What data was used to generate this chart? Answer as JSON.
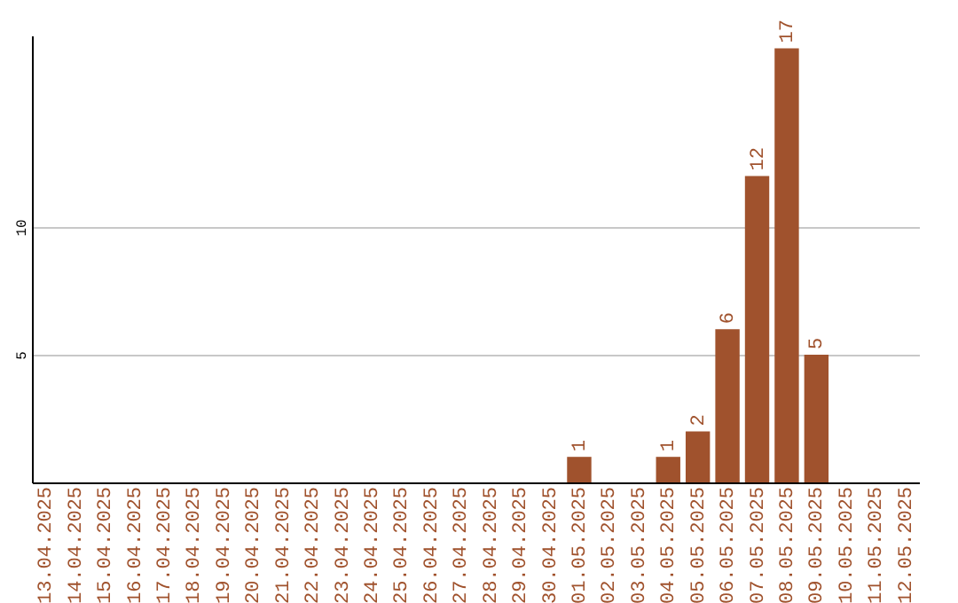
{
  "chart_data": {
    "type": "bar",
    "categories": [
      "13.04.2025",
      "14.04.2025",
      "15.04.2025",
      "16.04.2025",
      "17.04.2025",
      "18.04.2025",
      "19.04.2025",
      "20.04.2025",
      "21.04.2025",
      "22.04.2025",
      "23.04.2025",
      "24.04.2025",
      "25.04.2025",
      "26.04.2025",
      "27.04.2025",
      "28.04.2025",
      "29.04.2025",
      "30.04.2025",
      "01.05.2025",
      "02.05.2025",
      "03.05.2025",
      "04.05.2025",
      "05.05.2025",
      "06.05.2025",
      "07.05.2025",
      "08.05.2025",
      "09.05.2025",
      "10.05.2025",
      "11.05.2025",
      "12.05.2025"
    ],
    "values": [
      null,
      null,
      null,
      null,
      null,
      null,
      null,
      null,
      null,
      null,
      null,
      null,
      null,
      null,
      null,
      null,
      null,
      null,
      1,
      null,
      null,
      1,
      2,
      6,
      12,
      17,
      5,
      null,
      null,
      null
    ],
    "color": "#a0522d",
    "ylim": [
      0,
      17.5
    ],
    "yticks": [
      5,
      10
    ],
    "grid": "y",
    "data_labels": true
  }
}
